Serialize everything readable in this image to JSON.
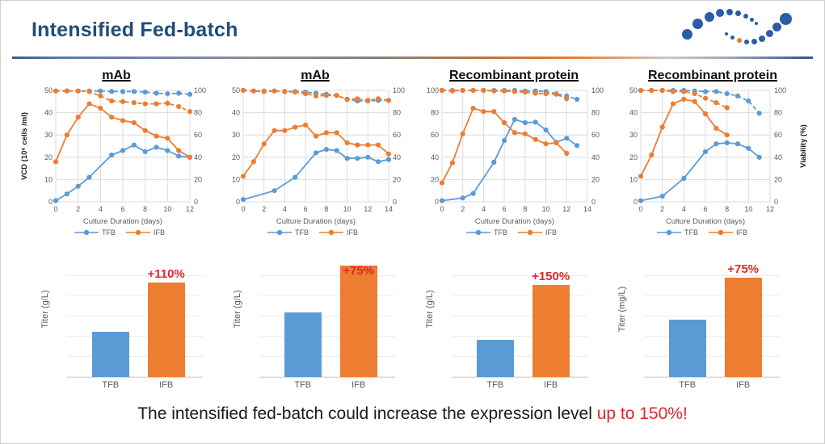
{
  "slide": {
    "title": "Intensified Fed-batch",
    "caption": {
      "black": "The intensified fed-batch could increase the expression level ",
      "red": "up to 150%!"
    },
    "colors": {
      "tfb": "#5B9BD5",
      "ifb": "#ED7D31",
      "title_navy": "#1F4E79",
      "accent_red": "#E3242B",
      "logo_blue": "#2B5DA7",
      "logo_orange": "#E2802C"
    }
  },
  "chart_data": [
    {
      "type": "line",
      "title": "mAb",
      "xlabel": "Culture Duration (days)",
      "x_range": [
        0,
        12
      ],
      "x_tick_step": 2,
      "left_axis": {
        "label": "VCD (10⁶ cells /ml)",
        "range": [
          0,
          50
        ],
        "tick_step": 10
      },
      "right_axis": {
        "label": "",
        "range": [
          0,
          100
        ],
        "tick_step": 20
      },
      "legend": [
        "TFB",
        "IFB"
      ],
      "grid": true,
      "series": [
        {
          "name": "TFB VCD",
          "color": "#5B9BD5",
          "style": "solid",
          "axis": "left",
          "x": [
            0,
            1,
            2,
            3,
            5,
            6,
            7,
            8,
            9,
            10,
            11,
            12
          ],
          "y": [
            0.5,
            3.5,
            7,
            11,
            21,
            23,
            25.5,
            22.5,
            24.5,
            23,
            20.5,
            20
          ]
        },
        {
          "name": "IFB VCD",
          "color": "#ED7D31",
          "style": "solid",
          "axis": "left",
          "x": [
            0,
            1,
            2,
            3,
            4,
            5,
            6,
            7,
            8,
            9,
            10,
            11,
            12
          ],
          "y": [
            18,
            30,
            38,
            44,
            42,
            38,
            36.5,
            35.5,
            32,
            29.5,
            28.5,
            23,
            20
          ]
        },
        {
          "name": "TFB Viability",
          "color": "#5B9BD5",
          "style": "dashed",
          "axis": "right",
          "x": [
            0,
            1,
            2,
            3,
            4,
            5,
            6,
            7,
            8,
            9,
            10,
            11,
            12
          ],
          "y": [
            99.5,
            99.5,
            99.5,
            99.5,
            99.5,
            99,
            99,
            99,
            98.5,
            97.5,
            97,
            97.5,
            96.5
          ]
        },
        {
          "name": "IFB Viability",
          "color": "#ED7D31",
          "style": "dashed",
          "axis": "right",
          "x": [
            0,
            1,
            2,
            3,
            4,
            5,
            6,
            7,
            8,
            9,
            10,
            11,
            12
          ],
          "y": [
            99.5,
            99.5,
            99.5,
            99,
            95,
            90.5,
            90,
            89,
            88,
            88,
            88.5,
            85.5,
            81
          ]
        }
      ]
    },
    {
      "type": "line",
      "title": "mAb",
      "xlabel": "Culture Duration (days)",
      "x_range": [
        0,
        14
      ],
      "x_tick_step": 2,
      "left_axis": {
        "label": "",
        "range": [
          0,
          50
        ],
        "tick_step": 10
      },
      "right_axis": {
        "label": "",
        "range": [
          0,
          100
        ],
        "tick_step": 20
      },
      "legend": [
        "TFB",
        "IFB"
      ],
      "grid": true,
      "series": [
        {
          "name": "TFB VCD",
          "color": "#5B9BD5",
          "style": "solid",
          "axis": "left",
          "x": [
            0,
            3,
            5,
            7,
            8,
            9,
            10,
            11,
            12,
            13,
            14
          ],
          "y": [
            1,
            5,
            11,
            22,
            23.5,
            23,
            19.5,
            19.5,
            20,
            18,
            19
          ]
        },
        {
          "name": "IFB VCD",
          "color": "#ED7D31",
          "style": "solid",
          "axis": "left",
          "x": [
            0,
            1,
            2,
            3,
            4,
            5,
            6,
            7,
            8,
            9,
            10,
            11,
            12,
            13,
            14
          ],
          "y": [
            11.5,
            18,
            26,
            32,
            32,
            33.5,
            34.5,
            29.5,
            31,
            31,
            26.5,
            25.5,
            25.5,
            25.5,
            21.5
          ]
        },
        {
          "name": "TFB Viability",
          "color": "#5B9BD5",
          "style": "dashed",
          "axis": "right",
          "x": [
            0,
            1,
            2,
            3,
            4,
            5,
            6,
            7,
            8,
            9,
            10,
            11,
            12,
            13,
            14
          ],
          "y": [
            100,
            99.5,
            99.5,
            99.5,
            99,
            99,
            98.5,
            97.5,
            96.5,
            95.5,
            92,
            90.5,
            90.5,
            91,
            91
          ]
        },
        {
          "name": "IFB Viability",
          "color": "#ED7D31",
          "style": "dashed",
          "axis": "right",
          "x": [
            0,
            1,
            2,
            3,
            4,
            5,
            6,
            7,
            8,
            9,
            10,
            11,
            12,
            13,
            14
          ],
          "y": [
            100,
            99.5,
            99,
            99.5,
            99,
            98.5,
            97,
            95,
            95.5,
            95.5,
            92,
            92.5,
            91,
            92.5,
            91
          ]
        }
      ]
    },
    {
      "type": "line",
      "title": "Recombinant protein",
      "xlabel": "Culture Duration (days)",
      "x_range": [
        0,
        14
      ],
      "x_tick_step": 2,
      "left_axis": {
        "label": "",
        "range": [
          0,
          100
        ],
        "tick_step": 20
      },
      "right_axis": {
        "label": "",
        "range": [
          0,
          100
        ],
        "tick_step": 20
      },
      "legend": [
        "TFB",
        "IFB"
      ],
      "grid": true,
      "series": [
        {
          "name": "TFB VCD",
          "color": "#5B9BD5",
          "style": "solid",
          "axis": "left",
          "x": [
            0,
            2,
            3,
            5,
            6,
            7,
            8,
            9,
            10,
            11,
            12,
            13
          ],
          "y": [
            1,
            3.5,
            7.5,
            35.5,
            55,
            74,
            71,
            71.5,
            64.5,
            53.5,
            57,
            50.5
          ]
        },
        {
          "name": "IFB VCD",
          "color": "#ED7D31",
          "style": "solid",
          "axis": "left",
          "x": [
            0,
            1,
            2,
            3,
            4,
            5,
            6,
            7,
            8,
            9,
            10,
            11,
            12
          ],
          "y": [
            17,
            35,
            61,
            84,
            81,
            81,
            71,
            62,
            61,
            56,
            52,
            53,
            43.5
          ]
        },
        {
          "name": "TFB Viability",
          "color": "#5B9BD5",
          "style": "dashed",
          "axis": "right",
          "x": [
            0,
            1,
            2,
            3,
            4,
            5,
            6,
            7,
            8,
            9,
            10,
            11,
            12,
            13
          ],
          "y": [
            100,
            100,
            100,
            100,
            100,
            100,
            100,
            100,
            99.5,
            99.5,
            99,
            97,
            95,
            92
          ]
        },
        {
          "name": "IFB Viability",
          "color": "#ED7D31",
          "style": "dashed",
          "axis": "right",
          "x": [
            0,
            1,
            2,
            3,
            4,
            5,
            6,
            7,
            8,
            9,
            10,
            11,
            12
          ],
          "y": [
            100,
            99.5,
            100,
            100,
            100,
            99.5,
            99.5,
            99,
            98.5,
            97.5,
            97,
            96.5,
            92.5
          ]
        }
      ]
    },
    {
      "type": "line",
      "title": "Recombinant protein",
      "xlabel": "Culture Duration (days)",
      "x_range": [
        0,
        12
      ],
      "x_tick_step": 2,
      "left_axis": {
        "label": "",
        "range": [
          0,
          50
        ],
        "tick_step": 10
      },
      "right_axis": {
        "label": "Viability (%)",
        "range": [
          0,
          100
        ],
        "tick_step": 20
      },
      "legend": [
        "TFB",
        "IFB"
      ],
      "grid": true,
      "series": [
        {
          "name": "TFB VCD",
          "color": "#5B9BD5",
          "style": "solid",
          "axis": "left",
          "x": [
            0,
            2,
            4,
            6,
            7,
            8,
            9,
            10,
            11
          ],
          "y": [
            0.5,
            2.5,
            10.5,
            22.5,
            26,
            26.5,
            26,
            24,
            20
          ]
        },
        {
          "name": "IFB VCD",
          "color": "#ED7D31",
          "style": "solid",
          "axis": "left",
          "x": [
            0,
            1,
            2,
            3,
            4,
            5,
            6,
            7,
            8
          ],
          "y": [
            11.5,
            21,
            33.5,
            44,
            46,
            45,
            39.5,
            33,
            30
          ]
        },
        {
          "name": "TFB Viability",
          "color": "#5B9BD5",
          "style": "dashed",
          "axis": "right",
          "x": [
            0,
            1,
            2,
            3,
            4,
            5,
            6,
            7,
            8,
            9,
            10,
            11
          ],
          "y": [
            100,
            100,
            100,
            100,
            100,
            99.5,
            99,
            99,
            97,
            95,
            90.5,
            79.5
          ]
        },
        {
          "name": "IFB Viability",
          "color": "#ED7D31",
          "style": "dashed",
          "axis": "right",
          "x": [
            0,
            1,
            2,
            3,
            4,
            5,
            6,
            7,
            8
          ],
          "y": [
            100,
            100,
            100,
            99,
            99,
            97,
            93,
            89,
            84.5
          ]
        }
      ]
    },
    {
      "type": "bar",
      "ylabel": "Titer (g/L)",
      "categories": [
        "TFB",
        "IFB"
      ],
      "relative_heights_pct": [
        38,
        79
      ],
      "colors": [
        "#5B9BD5",
        "#ED7D31"
      ],
      "annotation": {
        "text": "+110%",
        "target": "IFB"
      }
    },
    {
      "type": "bar",
      "ylabel": "Titer (g/L)",
      "categories": [
        "TFB",
        "IFB"
      ],
      "relative_heights_pct": [
        54,
        93
      ],
      "colors": [
        "#5B9BD5",
        "#ED7D31"
      ],
      "annotation": {
        "text": "+75%",
        "target": "IFB"
      }
    },
    {
      "type": "bar",
      "ylabel": "Titer (g/L)",
      "categories": [
        "TFB",
        "IFB"
      ],
      "relative_heights_pct": [
        31,
        77
      ],
      "colors": [
        "#5B9BD5",
        "#ED7D31"
      ],
      "annotation": {
        "text": "+150%",
        "target": "IFB"
      }
    },
    {
      "type": "bar",
      "ylabel": "Titer (mg/L)",
      "categories": [
        "TFB",
        "IFB"
      ],
      "relative_heights_pct": [
        48,
        83
      ],
      "colors": [
        "#5B9BD5",
        "#ED7D31"
      ],
      "annotation": {
        "text": "+75%",
        "target": "IFB"
      }
    }
  ]
}
